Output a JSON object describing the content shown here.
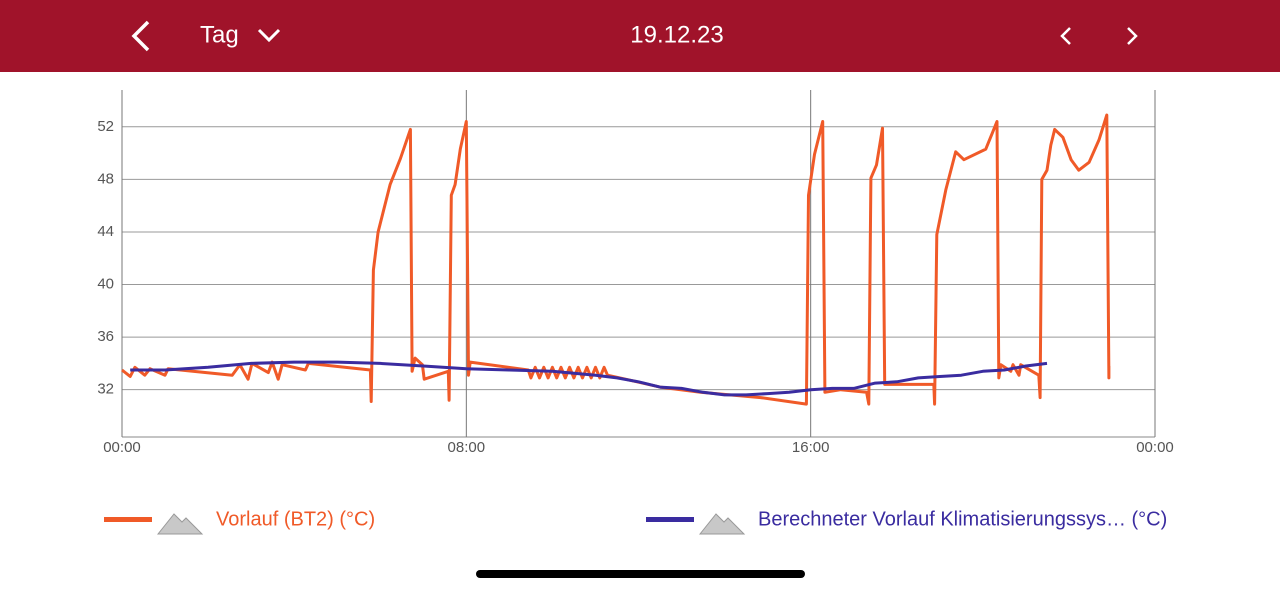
{
  "header": {
    "period": "Tag",
    "date": "19.12.23"
  },
  "chart_data": {
    "type": "line",
    "xlim": [
      0,
      24
    ],
    "xticks": [
      {
        "value": 0,
        "label": "00:00"
      },
      {
        "value": 8,
        "label": "08:00"
      },
      {
        "value": 16,
        "label": "16:00"
      },
      {
        "value": 24,
        "label": "00:00"
      }
    ],
    "ylim": [
      28.4,
      54.8
    ],
    "yticks": [
      32,
      36,
      40,
      44,
      48,
      52
    ],
    "grid": true,
    "series": [
      {
        "name": "Vorlauf (BT2) (°C)",
        "color": "#f05a28",
        "x": [
          0,
          0.19,
          0.3,
          0.53,
          0.65,
          1.0,
          1.07,
          2.56,
          2.74,
          2.93,
          3.02,
          3.4,
          3.49,
          3.63,
          3.72,
          4.26,
          4.33,
          5.77,
          5.79,
          5.84,
          5.95,
          6.23,
          6.47,
          6.7,
          6.74,
          6.81,
          6.98,
          7.02,
          7.58,
          7.6,
          7.65,
          7.74,
          7.86,
          8.0,
          8.05,
          8.09,
          9.44,
          9.5,
          9.6,
          9.7,
          9.8,
          9.9,
          10.0,
          10.1,
          10.2,
          10.3,
          10.4,
          10.5,
          10.6,
          10.7,
          10.8,
          10.9,
          11.0,
          11.1,
          11.2,
          11.28,
          11.7,
          12.5,
          13.44,
          14.84,
          15.9,
          15.95,
          16.09,
          16.28,
          16.33,
          16.7,
          17.3,
          17.35,
          17.4,
          17.53,
          17.67,
          17.72,
          18.86,
          18.88,
          18.93,
          19.14,
          19.37,
          19.56,
          20.07,
          20.33,
          20.37,
          20.42,
          20.65,
          20.7,
          20.84,
          20.88,
          21.3,
          21.33,
          21.37,
          21.49,
          21.58,
          21.67,
          21.86,
          22.05,
          22.23,
          22.47,
          22.7,
          22.88,
          22.93,
          22.93
        ],
        "values": [
          33.5,
          33.0,
          33.7,
          33.1,
          33.6,
          33.1,
          33.6,
          33.1,
          33.9,
          32.8,
          34.0,
          33.3,
          34.1,
          32.8,
          33.9,
          33.5,
          34.0,
          33.5,
          31.1,
          41.1,
          44.0,
          47.6,
          49.6,
          51.8,
          33.4,
          34.4,
          33.9,
          32.8,
          33.4,
          31.2,
          46.8,
          47.6,
          50.3,
          52.4,
          33.1,
          34.1,
          33.5,
          32.9,
          33.7,
          32.9,
          33.7,
          32.9,
          33.7,
          32.9,
          33.7,
          32.9,
          33.7,
          32.9,
          33.7,
          32.9,
          33.7,
          32.9,
          33.7,
          32.9,
          33.7,
          33.1,
          32.8,
          32.2,
          31.8,
          31.4,
          30.9,
          46.8,
          49.9,
          52.4,
          31.8,
          32.0,
          31.8,
          30.9,
          48.1,
          49.1,
          51.9,
          32.4,
          32.4,
          30.9,
          43.8,
          47.2,
          50.1,
          49.5,
          50.3,
          52.4,
          32.9,
          33.9,
          33.4,
          33.9,
          33.1,
          33.9,
          33.1,
          31.4,
          48.0,
          48.7,
          50.6,
          51.8,
          51.2,
          49.5,
          48.7,
          49.3,
          51.0,
          52.9,
          32.9,
          33.8
        ]
      },
      {
        "name": "Berechneter Vorlauf Klimatisierungssys… (°C)",
        "color": "#3a2ca0",
        "x": [
          0.19,
          1,
          2,
          3,
          4,
          5,
          6,
          7,
          8,
          9,
          10,
          11,
          11.5,
          12,
          12.5,
          13,
          13.5,
          14,
          14.5,
          15,
          15.5,
          16,
          16.5,
          17,
          17.5,
          18,
          18.5,
          19,
          19.5,
          20,
          20.5,
          21,
          21.49
        ],
        "values": [
          33.5,
          33.5,
          33.7,
          34.0,
          34.1,
          34.1,
          34.0,
          33.8,
          33.6,
          33.5,
          33.4,
          33.1,
          32.9,
          32.6,
          32.2,
          32.1,
          31.8,
          31.6,
          31.6,
          31.7,
          31.8,
          32.0,
          32.1,
          32.1,
          32.5,
          32.6,
          32.9,
          33.0,
          33.1,
          33.4,
          33.5,
          33.8,
          34.0
        ]
      }
    ]
  }
}
